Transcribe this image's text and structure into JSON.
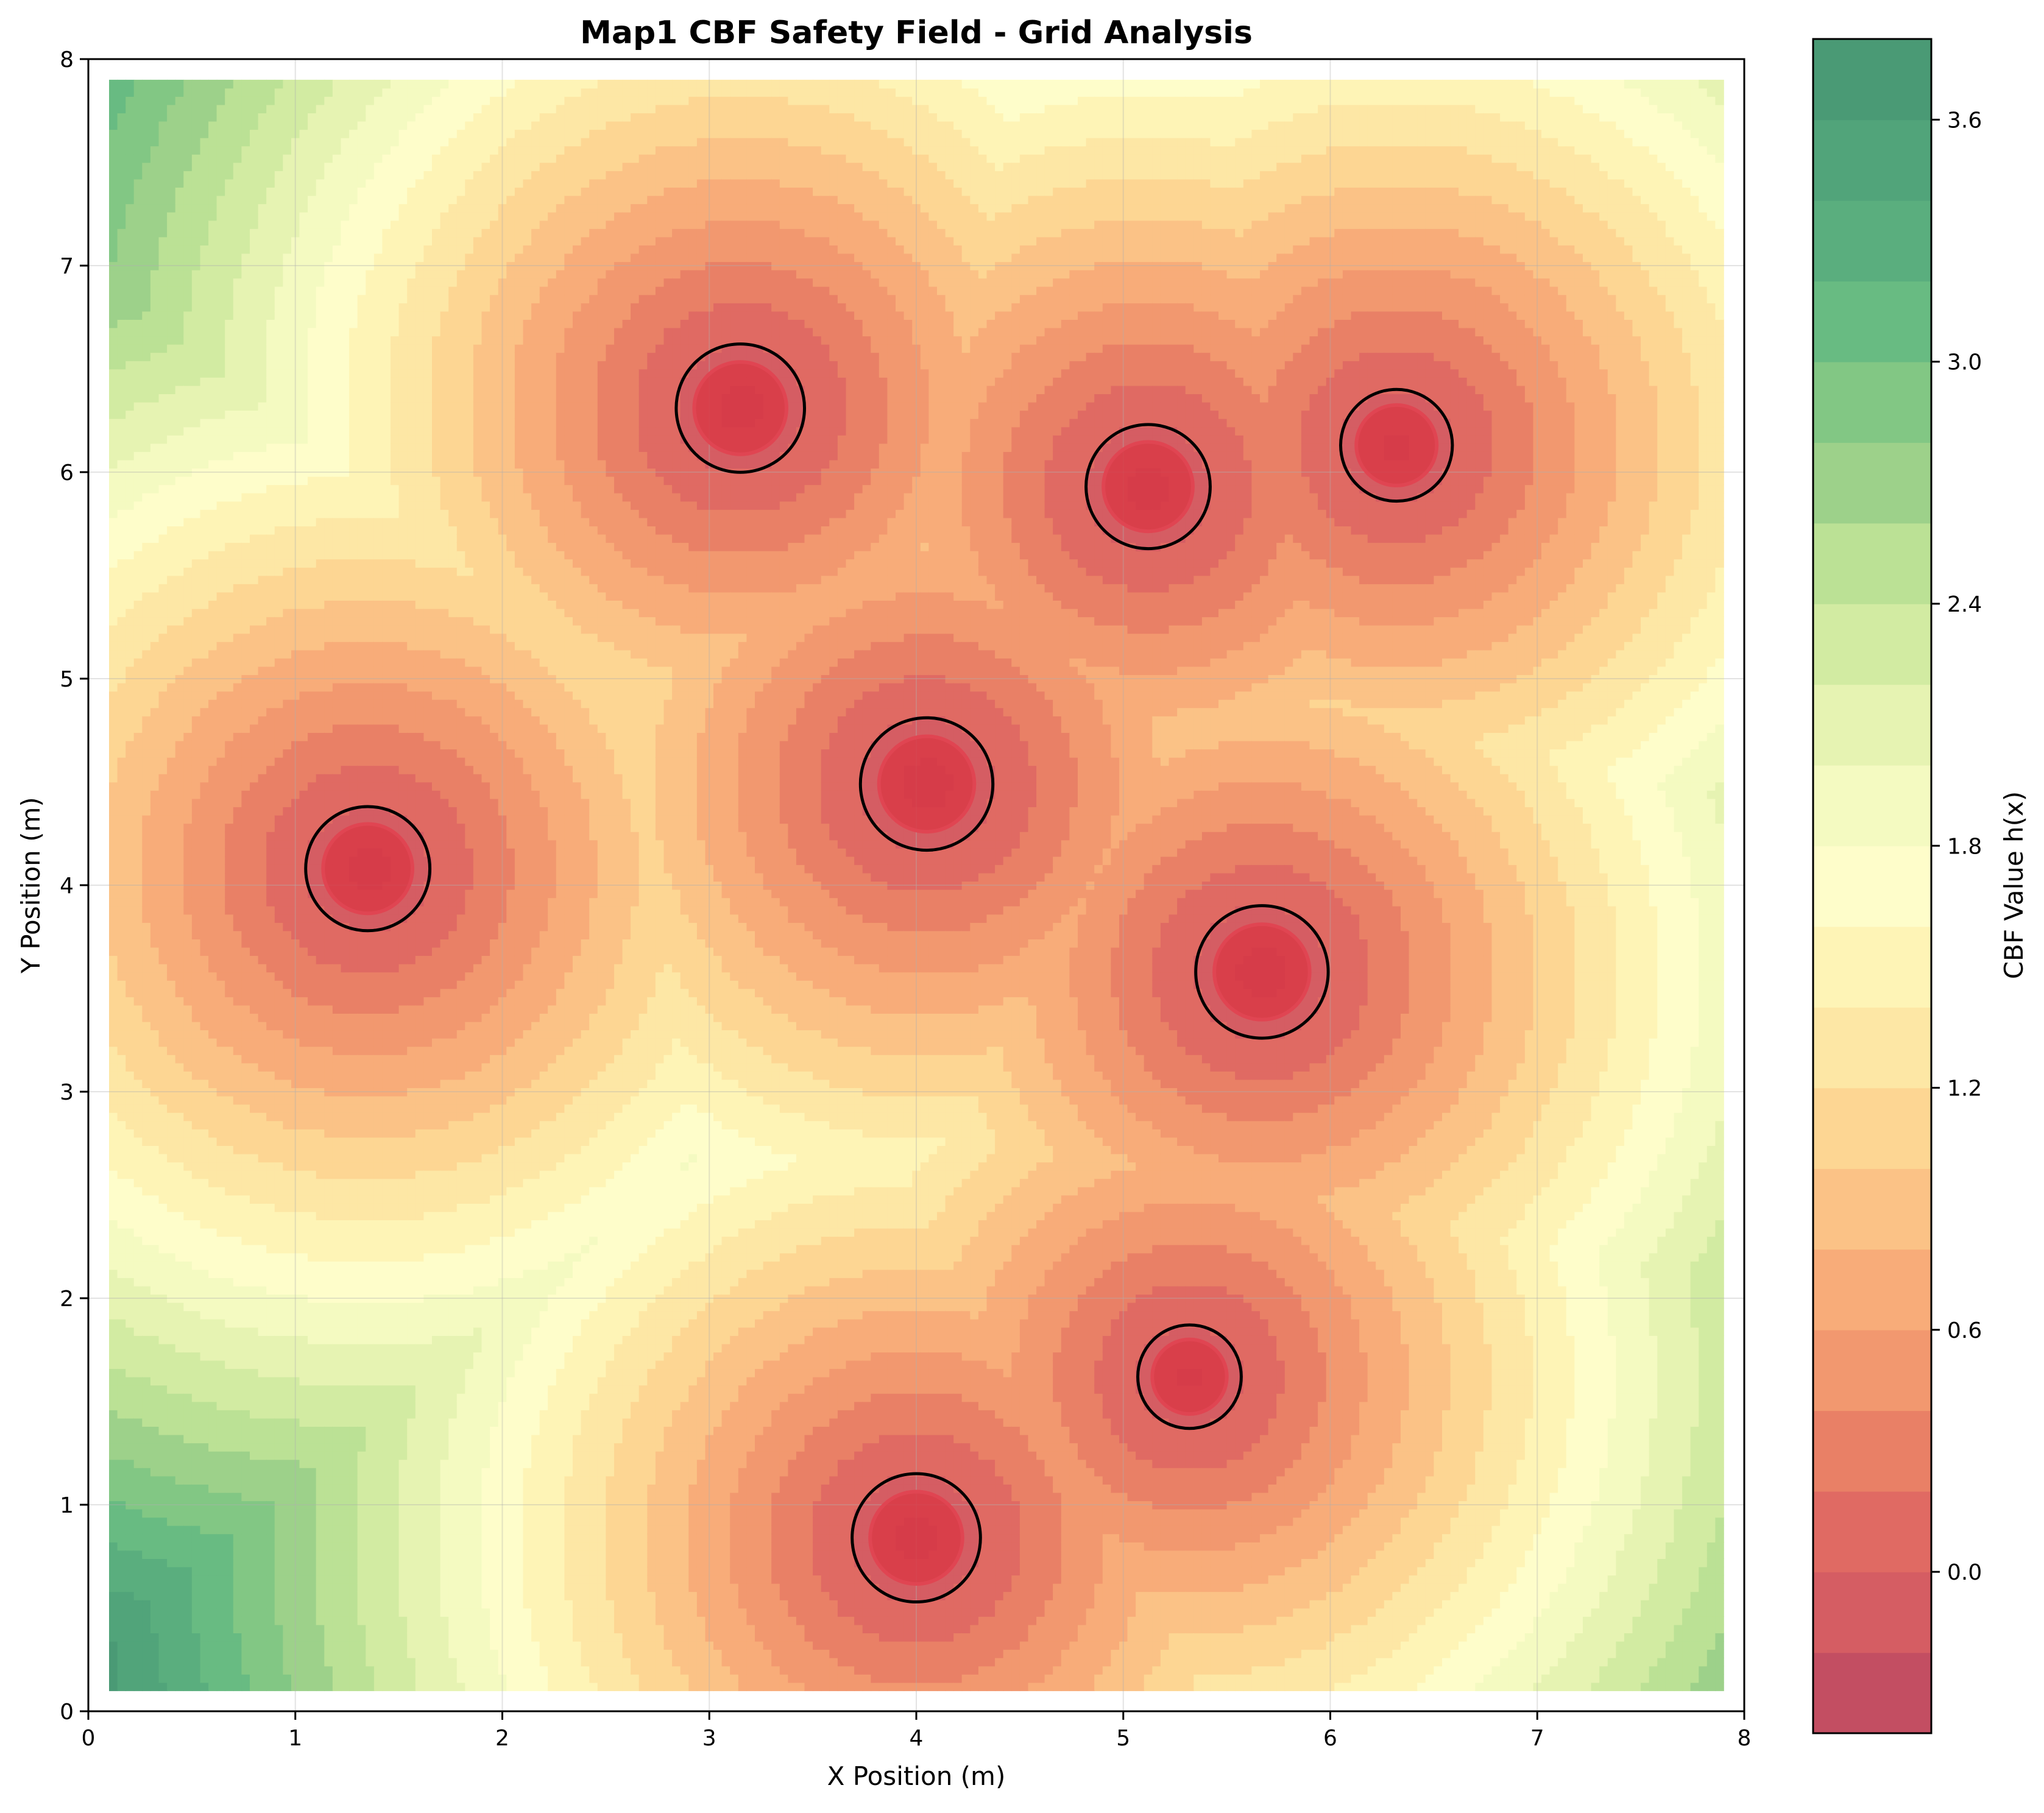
{
  "chart_data": {
    "type": "heatmap",
    "subtype": "filled-contour",
    "title": "Map1 CBF Safety Field - Grid Analysis",
    "xlabel": "X Position (m)",
    "ylabel": "Y Position (m)",
    "xlim": [
      0,
      8
    ],
    "ylim": [
      0,
      8
    ],
    "x_ticks": [
      "0",
      "1",
      "2",
      "3",
      "4",
      "5",
      "6",
      "7",
      "8"
    ],
    "y_ticks": [
      "0",
      "1",
      "2",
      "3",
      "4",
      "5",
      "6",
      "7",
      "8"
    ],
    "grid": true,
    "field_extent": [
      0.1,
      7.9,
      0.1,
      7.9
    ],
    "colormap": "RdYlGn",
    "colorbar": {
      "label": "CBF Value h(x)",
      "range": [
        -0.4,
        3.8
      ],
      "ticks": [
        "0.0",
        "0.6",
        "1.2",
        "1.8",
        "2.4",
        "3.0",
        "3.6"
      ],
      "tick_values": [
        0.0,
        0.6,
        1.2,
        1.8,
        2.4,
        3.0,
        3.6
      ],
      "levels": 21,
      "colors": [
        "#c34e62",
        "#d55d63",
        "#e06a63",
        "#e98066",
        "#f2986f",
        "#f8ac79",
        "#fbc286",
        "#fdd693",
        "#fde7a5",
        "#fef4b6",
        "#fefdca",
        "#f4fac1",
        "#e6f3b2",
        "#d2eba2",
        "#bbe195",
        "#9dd18a",
        "#82c784",
        "#68bb82",
        "#5aae7e",
        "#51a47a",
        "#4a9a75"
      ]
    },
    "zero_level_color": "#000000",
    "obstacles": [
      {
        "x": 1.35,
        "y": 4.08,
        "radius": 0.3
      },
      {
        "x": 3.15,
        "y": 6.31,
        "radius": 0.31
      },
      {
        "x": 4.05,
        "y": 4.49,
        "radius": 0.32
      },
      {
        "x": 5.12,
        "y": 5.93,
        "radius": 0.3
      },
      {
        "x": 6.32,
        "y": 6.13,
        "radius": 0.27
      },
      {
        "x": 5.67,
        "y": 3.58,
        "radius": 0.32
      },
      {
        "x": 5.32,
        "y": 1.62,
        "radius": 0.25
      },
      {
        "x": 4.0,
        "y": 0.84,
        "radius": 0.31
      }
    ]
  }
}
